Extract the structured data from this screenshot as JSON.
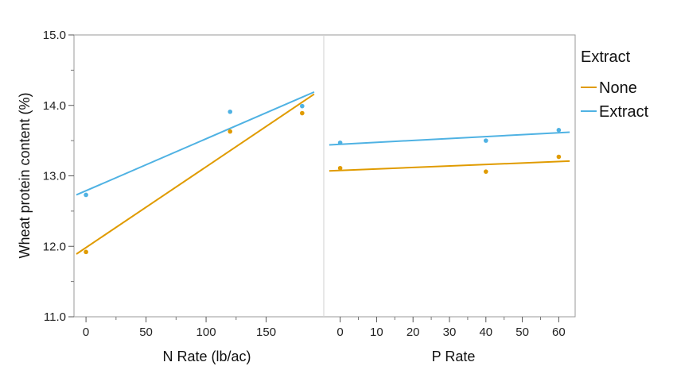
{
  "chart_data": {
    "type": "scatter",
    "ylabel": "Wheat protein content (%)",
    "yticks": [
      "11.0",
      "12.0",
      "13.0",
      "14.0",
      "15.0"
    ],
    "ylim": [
      11.0,
      15.0
    ],
    "legend": {
      "title": "Extract",
      "placement": "right",
      "entries": [
        {
          "label": "None",
          "color": "#e09b00"
        },
        {
          "label": "Extract",
          "color": "#4fb2e3"
        }
      ]
    },
    "panels": [
      {
        "xlabel": "N Rate (lb/ac)",
        "xticks": [
          "0",
          "50",
          "100",
          "150"
        ],
        "xlim": [
          -10,
          198
        ],
        "series": [
          {
            "name": "None",
            "color": "#e09b00",
            "points": [
              {
                "x": 0,
                "y": 11.92
              },
              {
                "x": 120,
                "y": 13.63
              },
              {
                "x": 180,
                "y": 13.89
              }
            ],
            "fit": {
              "x": [
                -8,
                190
              ],
              "y": [
                11.89,
                14.16
              ]
            }
          },
          {
            "name": "Extract",
            "color": "#4fb2e3",
            "points": [
              {
                "x": 0,
                "y": 12.73
              },
              {
                "x": 120,
                "y": 13.91
              },
              {
                "x": 180,
                "y": 13.99
              }
            ],
            "fit": {
              "x": [
                -8,
                190
              ],
              "y": [
                12.73,
                14.19
              ]
            }
          }
        ]
      },
      {
        "xlabel": "P Rate",
        "xticks": [
          "0",
          "10",
          "20",
          "30",
          "40",
          "50",
          "60"
        ],
        "xlim": [
          -4.5,
          64.5
        ],
        "series": [
          {
            "name": "None",
            "color": "#e09b00",
            "points": [
              {
                "x": 0,
                "y": 13.11
              },
              {
                "x": 40,
                "y": 13.06
              },
              {
                "x": 60,
                "y": 13.27
              }
            ],
            "fit": {
              "x": [
                -3,
                63
              ],
              "y": [
                13.07,
                13.21
              ]
            }
          },
          {
            "name": "Extract",
            "color": "#4fb2e3",
            "points": [
              {
                "x": 0,
                "y": 13.47
              },
              {
                "x": 40,
                "y": 13.5
              },
              {
                "x": 60,
                "y": 13.65
              }
            ],
            "fit": {
              "x": [
                -3,
                63
              ],
              "y": [
                13.44,
                13.62
              ]
            }
          }
        ]
      }
    ]
  }
}
